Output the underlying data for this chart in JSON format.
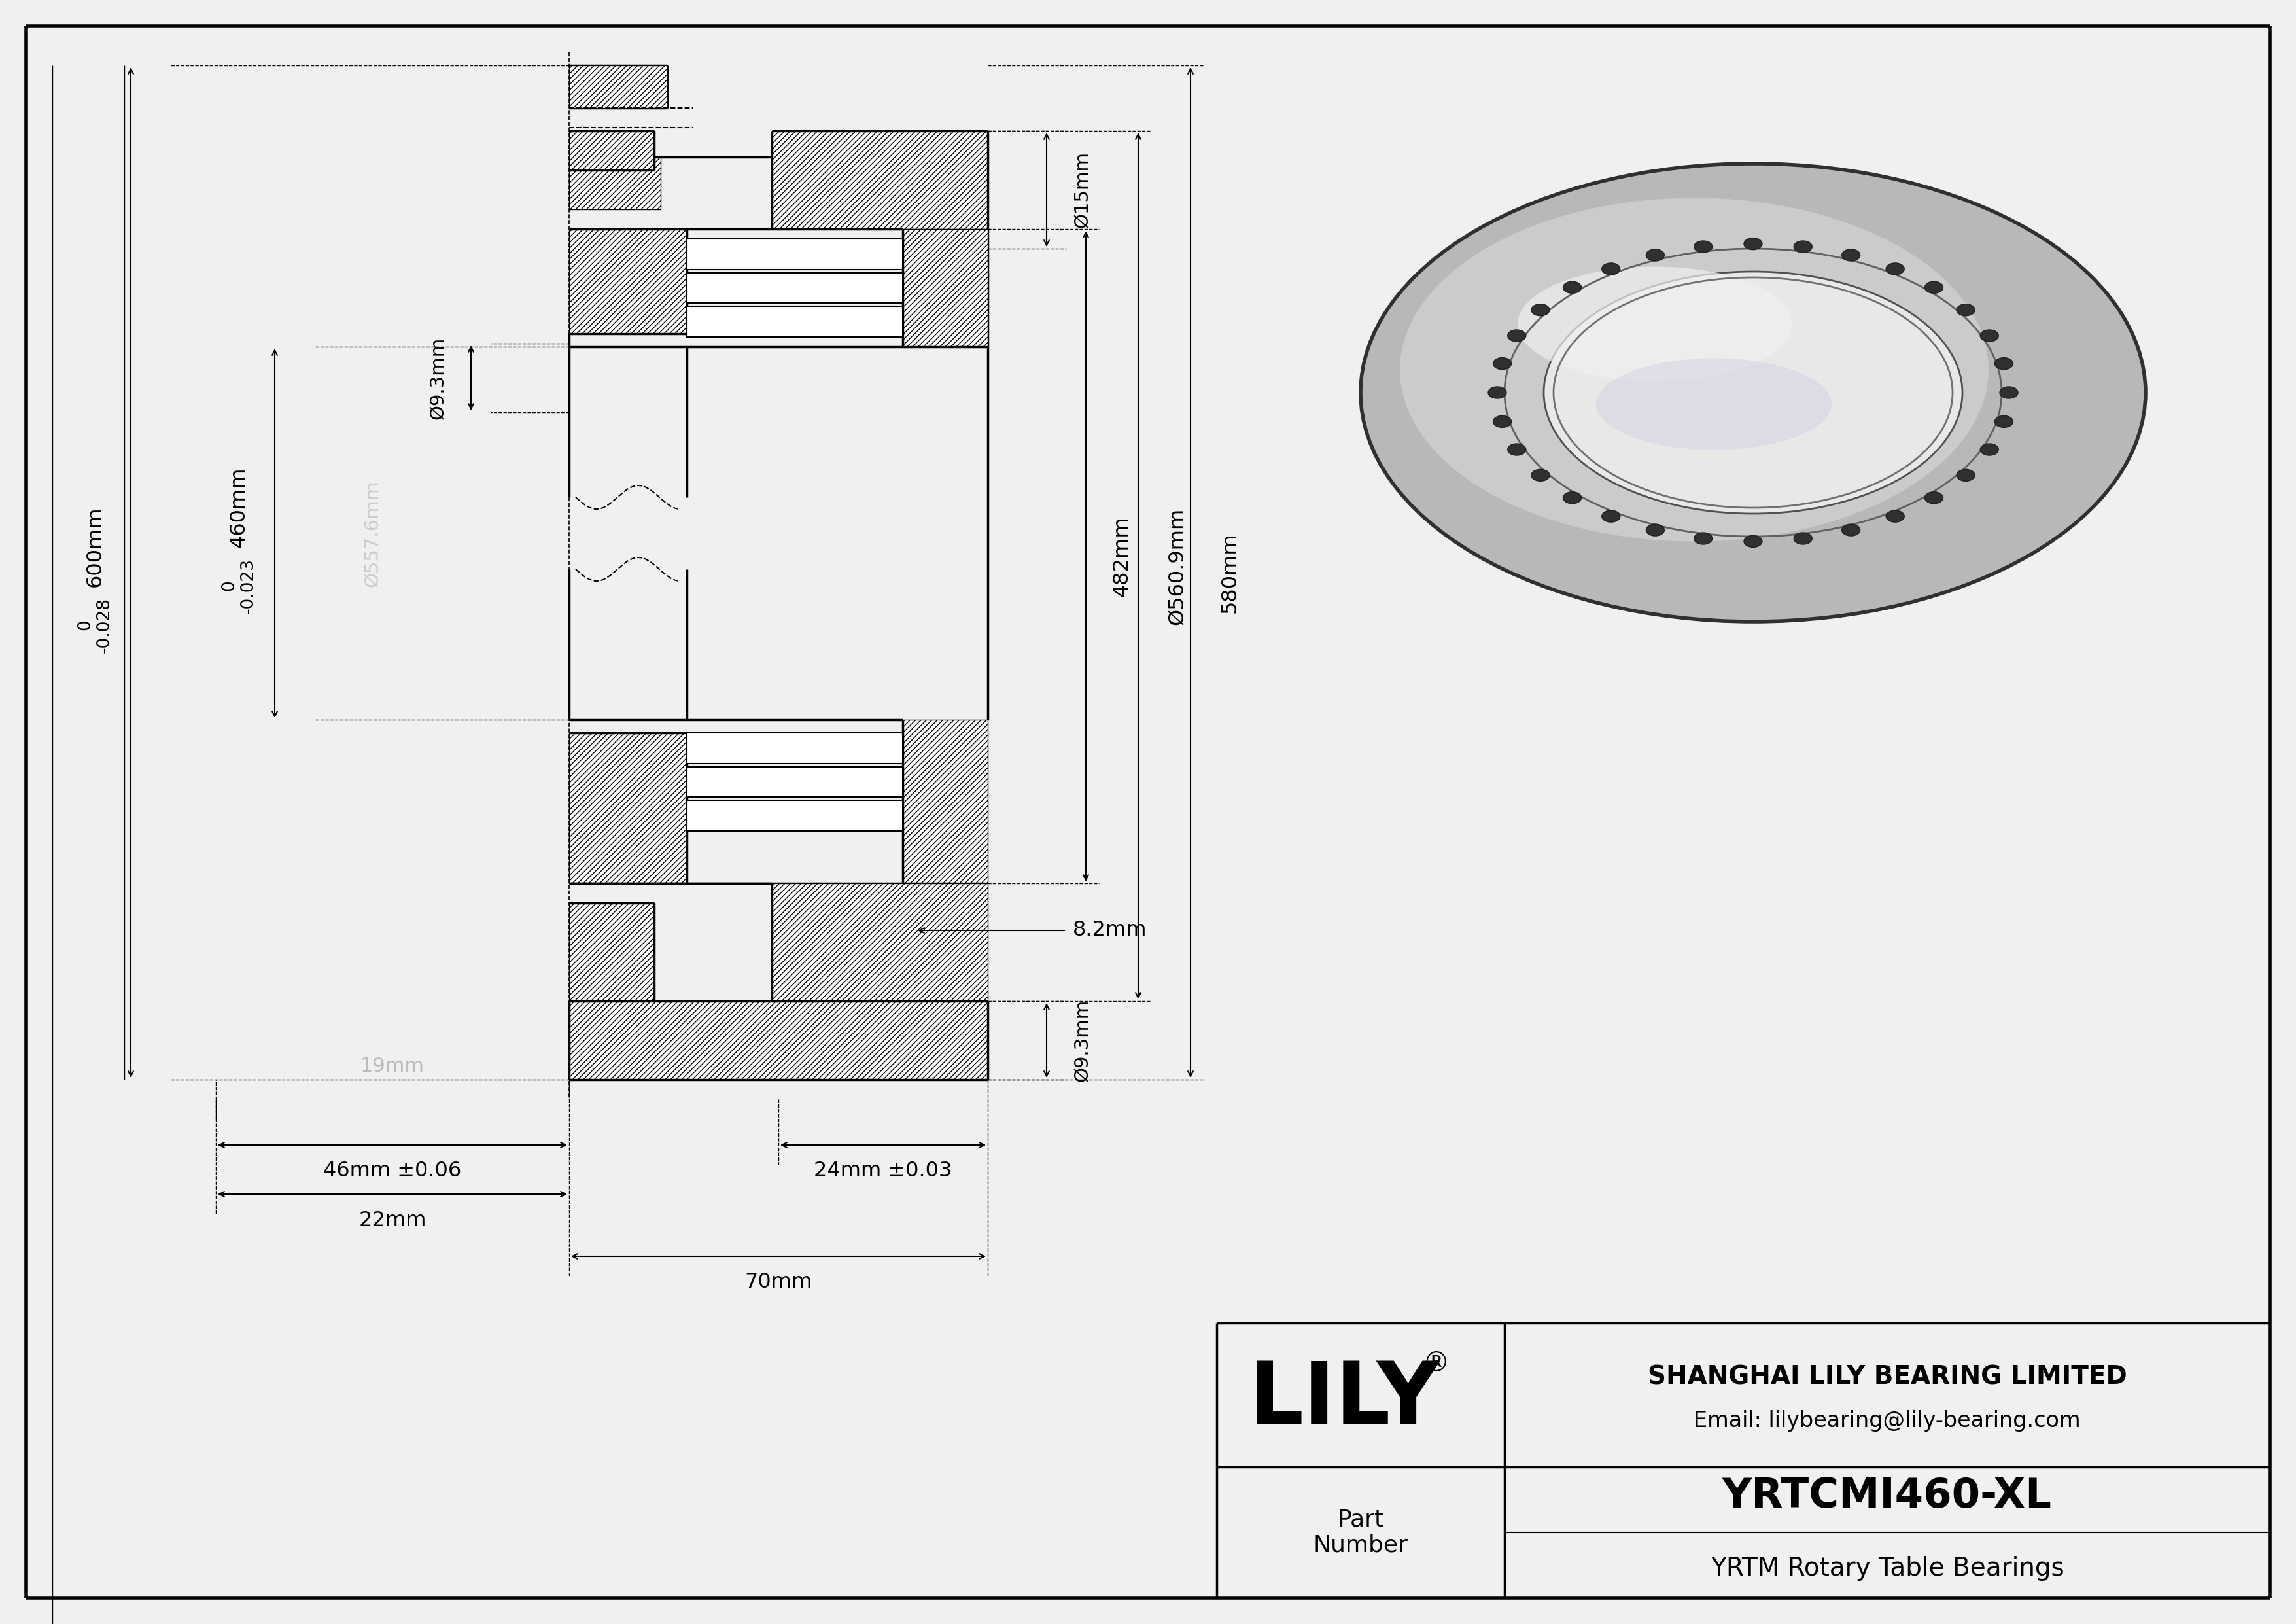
{
  "bg_color": "#f0f0f0",
  "draw_bg": "#f0f0f0",
  "line_color": "#000000",
  "dim_color": "#000000",
  "gray_dim": "#aaaaaa",
  "title_text": "YRTCMI460-XL",
  "subtitle_text": "YRTM Rotary Table Bearings",
  "company_name": "SHANGHAI LILY BEARING LIMITED",
  "company_email": "Email: lilybearing@lily-bearing.com",
  "part_label": "Part\nNumber",
  "logo_text": "LILY",
  "dims": {
    "d600": "600mm",
    "d600_tol": "0\n-0.028",
    "d460": "460mm",
    "d460_tol": "0\n-0.023",
    "d557": "Ø557.6mm",
    "d9_3_left": "Ø9.3mm",
    "d15": "Ø15mm",
    "d482": "482mm",
    "d560": "Ø560.9mm",
    "d580": "580mm",
    "d9_3_right": "Ø9.3mm",
    "d8_2": "8.2mm",
    "d19": "19mm",
    "d46": "46mm ±0.06",
    "d22": "22mm",
    "d70": "70mm",
    "d24": "24mm ±0.03"
  }
}
